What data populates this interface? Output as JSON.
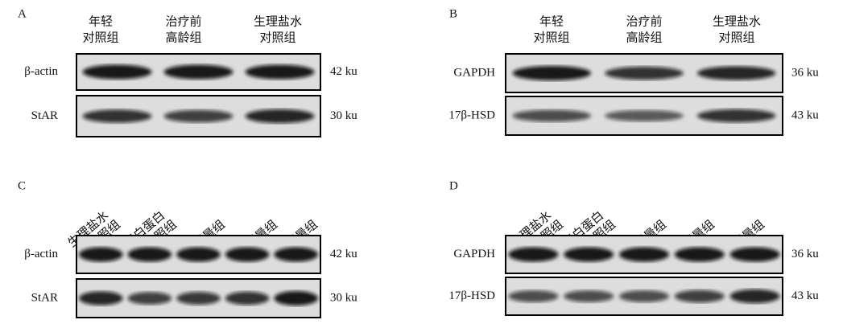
{
  "panels": [
    {
      "label": "A",
      "columns": [
        [
          "年轻",
          "对照组"
        ],
        [
          "治疗前",
          "高龄组"
        ],
        [
          "生理盐水",
          "对照组"
        ]
      ],
      "rows": [
        {
          "name": "β-actin",
          "size": "42 ku"
        },
        {
          "name": "StAR",
          "size": "30 ku"
        }
      ]
    },
    {
      "label": "B",
      "columns": [
        [
          "年轻",
          "对照组"
        ],
        [
          "治疗前",
          "高龄组"
        ],
        [
          "生理盐水",
          "对照组"
        ]
      ],
      "rows": [
        {
          "name": "GAPDH",
          "size": "36 ku"
        },
        {
          "name": "17β-HSD",
          "size": "43 ku"
        }
      ]
    },
    {
      "label": "C",
      "columns": [
        [
          "生理盐水",
          "对照组"
        ],
        [
          "人血清白蛋白",
          "对照组"
        ],
        [
          "低剂量组"
        ],
        [
          "中剂量组"
        ],
        [
          "高剂量组"
        ]
      ],
      "rows": [
        {
          "name": "β-actin",
          "size": "42 ku"
        },
        {
          "name": "StAR",
          "size": "30 ku"
        }
      ]
    },
    {
      "label": "D",
      "columns": [
        [
          "生理盐水",
          "对照组"
        ],
        [
          "人血清白蛋白",
          "对照组"
        ],
        [
          "低剂量组"
        ],
        [
          "中剂量组"
        ],
        [
          "高剂量组"
        ]
      ],
      "rows": [
        {
          "name": "GAPDH",
          "size": "36 ku"
        },
        {
          "name": "17β-HSD",
          "size": "43 ku"
        }
      ]
    }
  ]
}
